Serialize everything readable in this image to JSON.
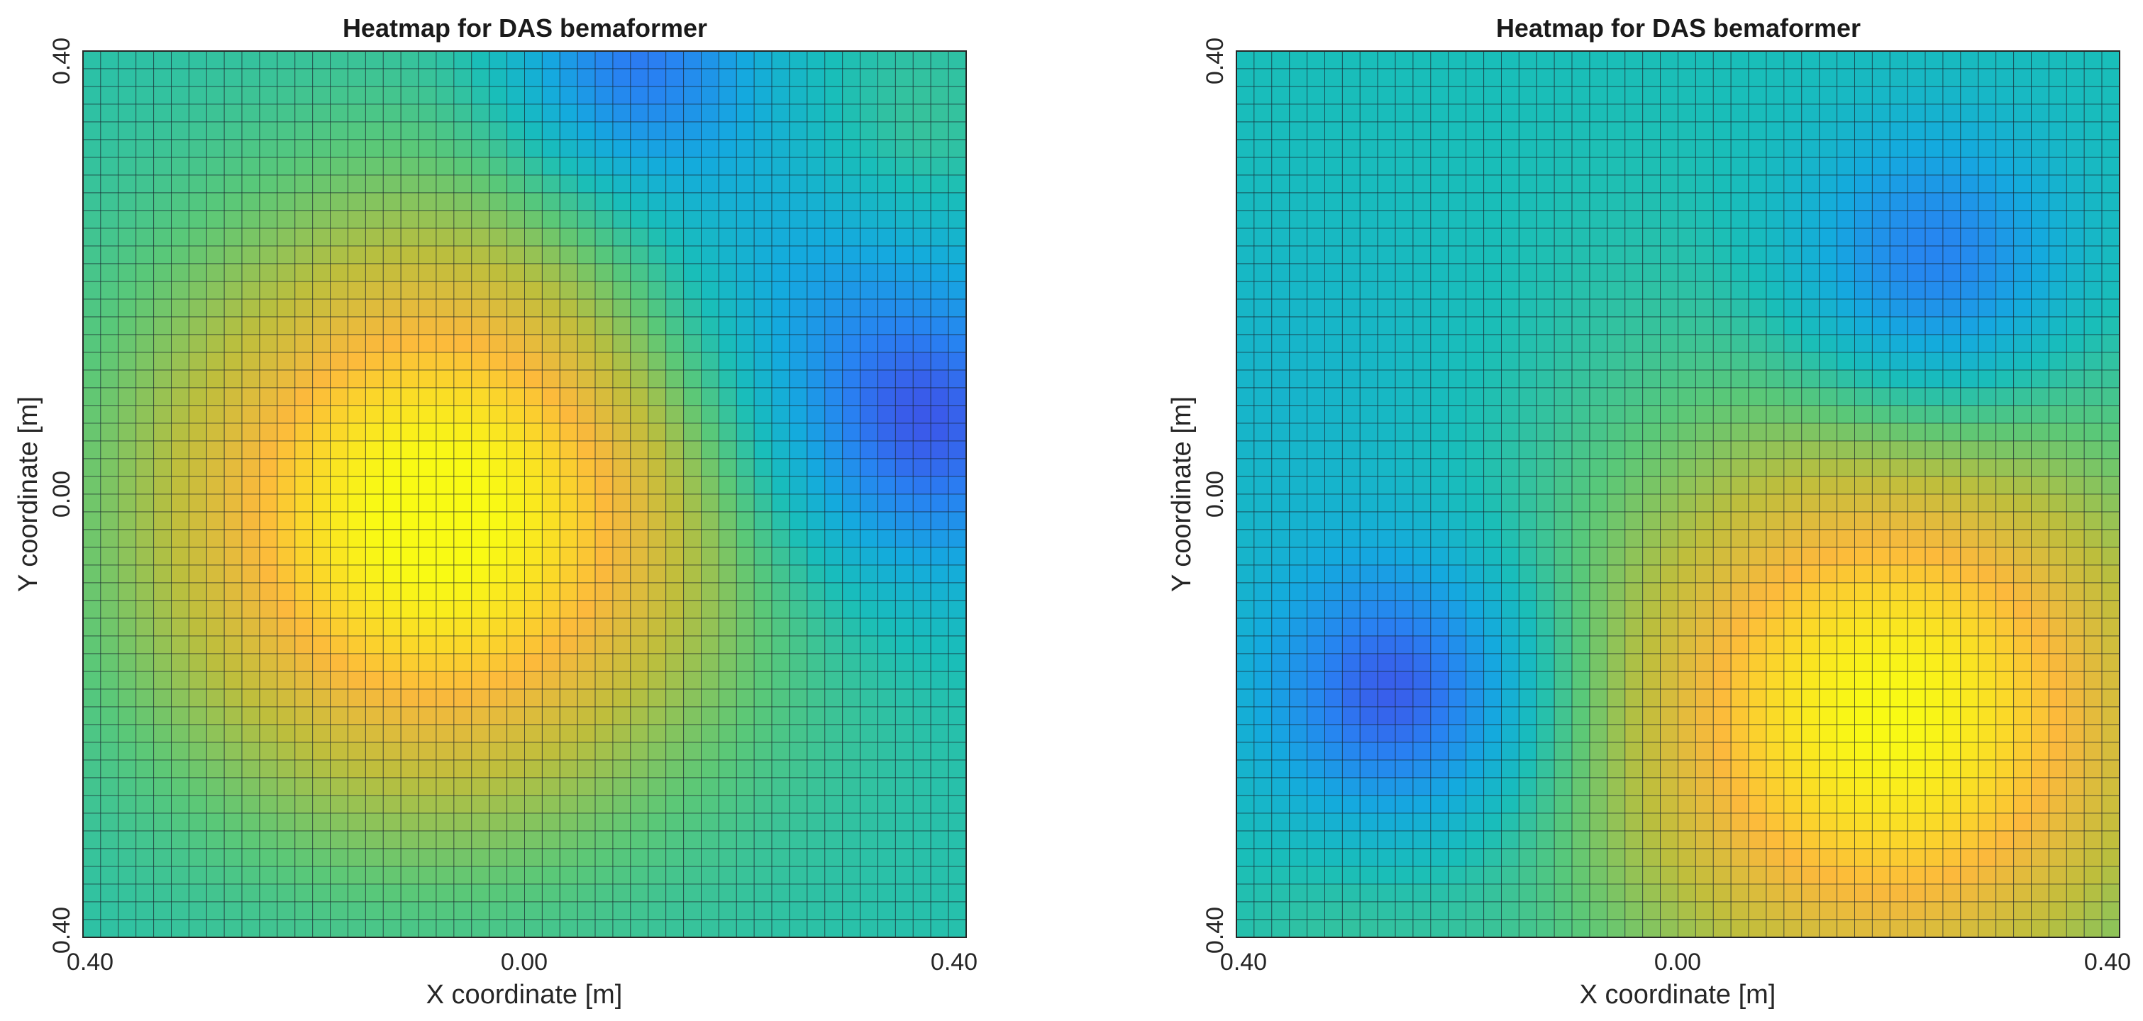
{
  "chart_data": [
    {
      "type": "heatmap",
      "title": "Heatmap for DAS bemaformer",
      "xlabel": "X coordinate [m]",
      "ylabel": "Y coordinate [m]",
      "xlim": [
        -0.4,
        0.4
      ],
      "ylim": [
        -0.4,
        0.4
      ],
      "x_tick_labels": [
        "0.40",
        "0.00",
        "0.40"
      ],
      "y_tick_labels": [
        "0.40",
        "0.00",
        "0.40"
      ],
      "grid_cells": 50,
      "colormap": "parula",
      "grid": true,
      "peaks": [
        {
          "x": -0.08,
          "y": -0.02,
          "level": "max"
        },
        {
          "x": 0.36,
          "y": 0.06,
          "level": "min"
        },
        {
          "x": 0.1,
          "y": 0.39,
          "level": "min"
        }
      ]
    },
    {
      "type": "heatmap",
      "title": "Heatmap for DAS bemaformer",
      "xlabel": "X coordinate [m]",
      "ylabel": "Y coordinate [m]",
      "xlim": [
        -0.4,
        0.4
      ],
      "ylim": [
        -0.4,
        0.4
      ],
      "x_tick_labels": [
        "0.40",
        "0.00",
        "0.40"
      ],
      "y_tick_labels": [
        "0.40",
        "0.00",
        "0.40"
      ],
      "grid_cells": 50,
      "colormap": "parula",
      "grid": true,
      "peaks": [
        {
          "x": 0.18,
          "y": -0.2,
          "level": "max"
        },
        {
          "x": -0.25,
          "y": -0.18,
          "level": "min"
        },
        {
          "x": 0.23,
          "y": 0.2,
          "level": "min"
        }
      ]
    }
  ]
}
